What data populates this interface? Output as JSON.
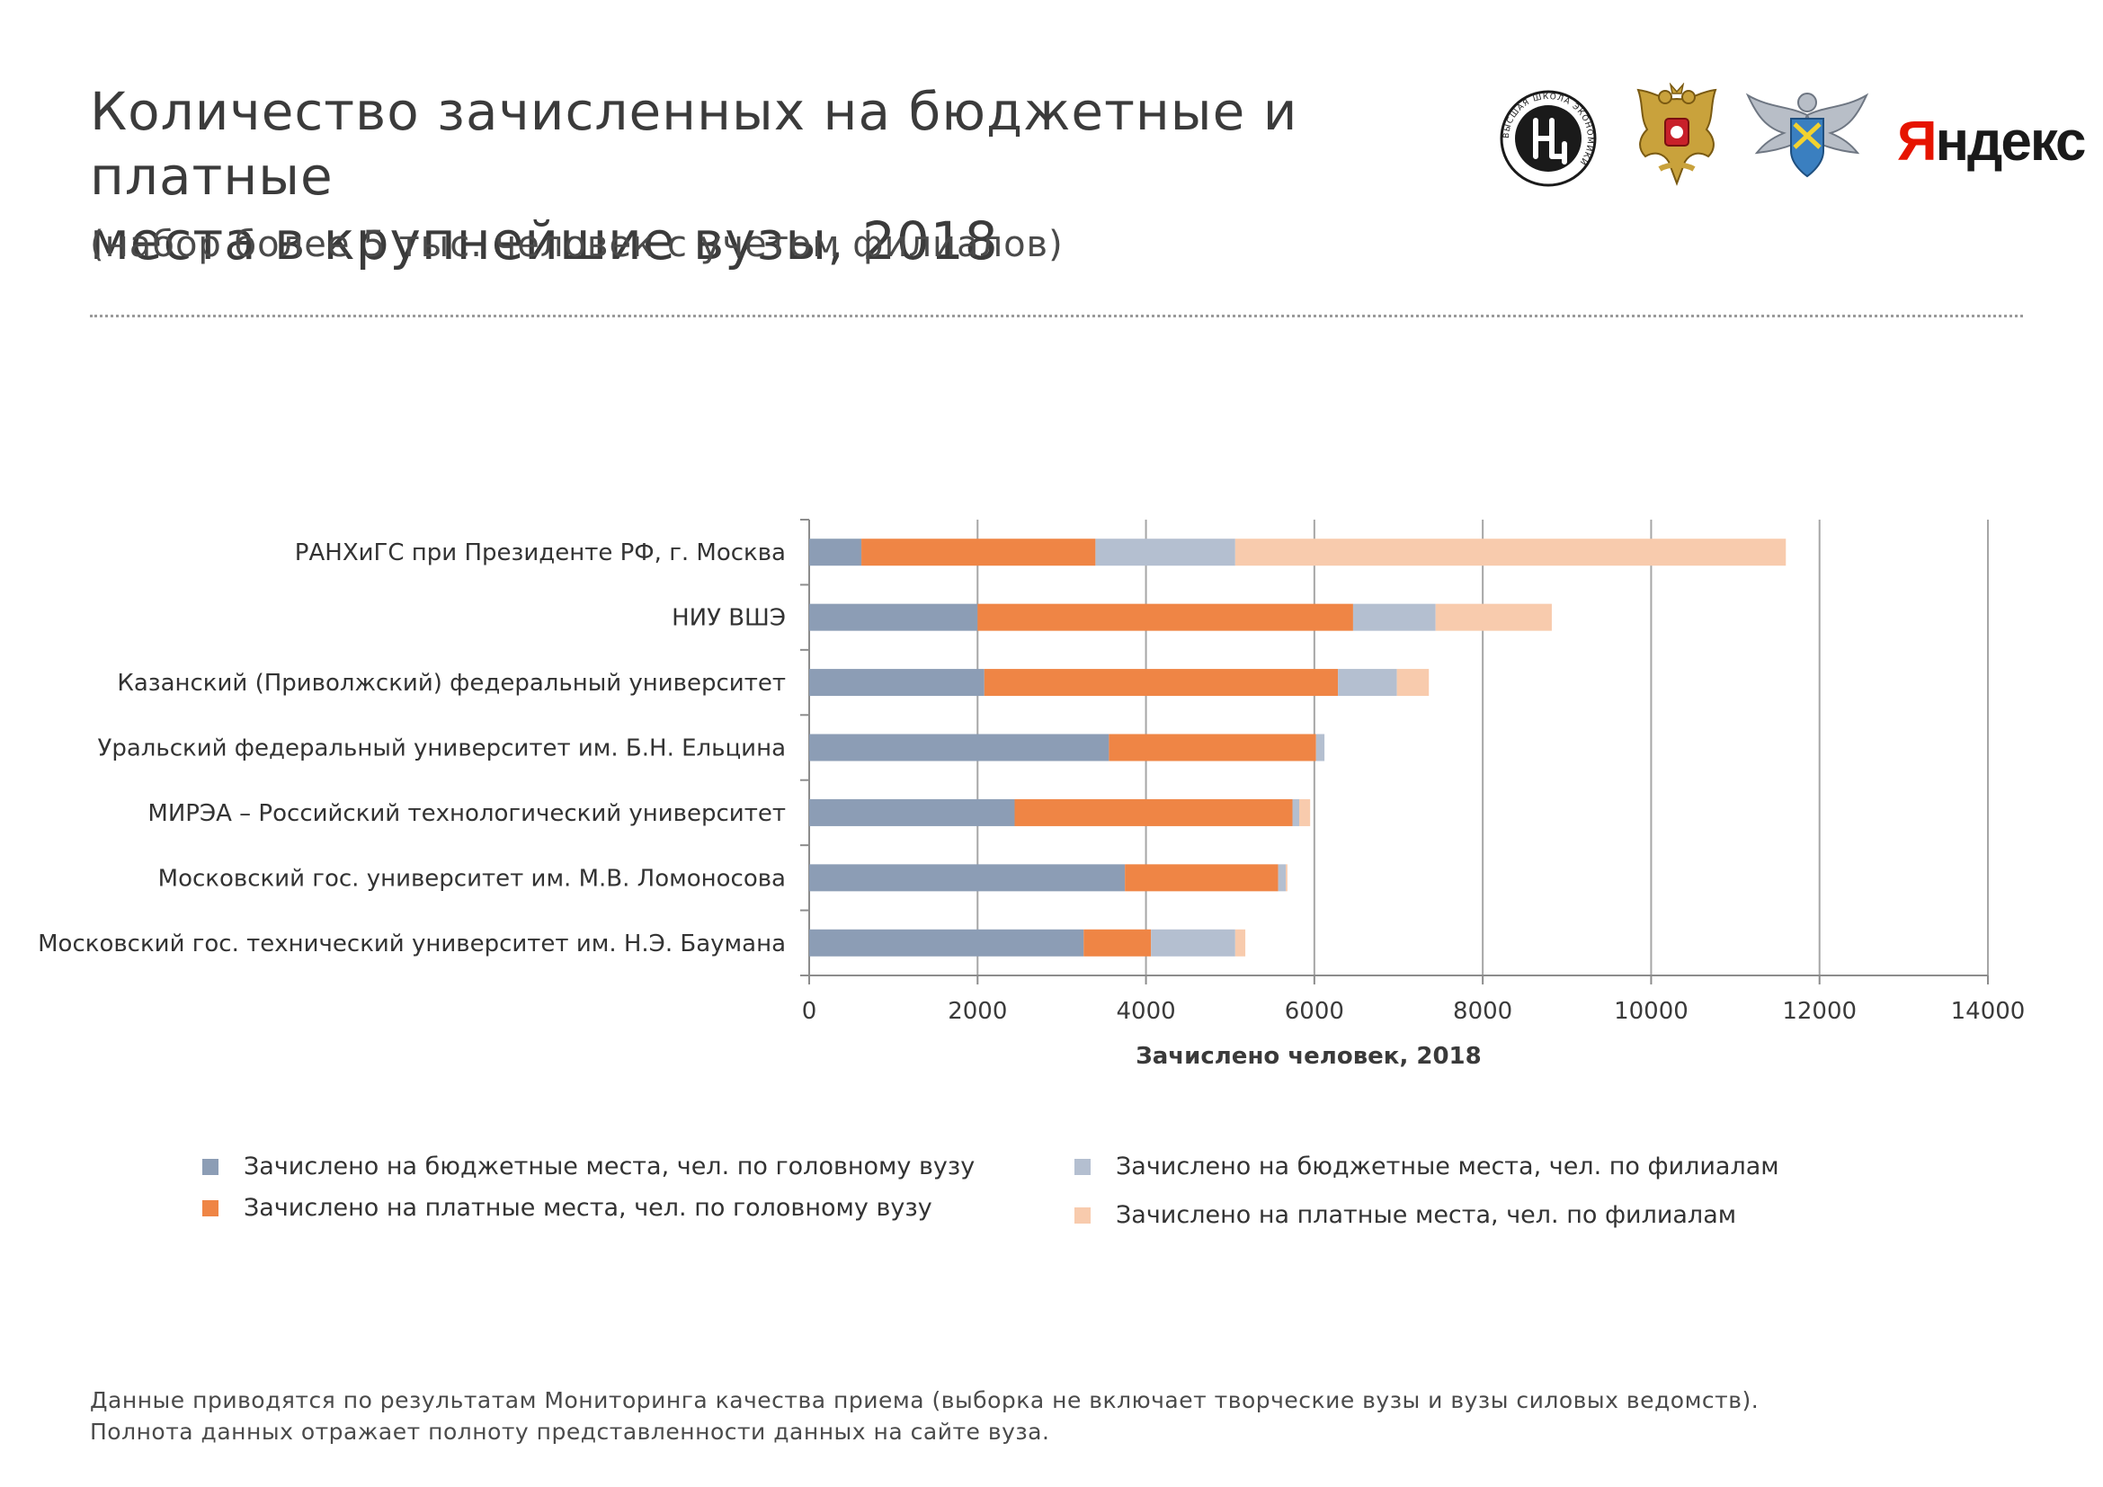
{
  "header": {
    "title_line1": "Количество зачисленных на бюджетные и платные",
    "title_line2": "места в крупнейшие вузы, 2018",
    "subtitle": "(набор более 5 тыс. человек с учетом филиалов)"
  },
  "logos": {
    "hse": "ВЫСШАЯ ШКОЛА ЭКОНОМИКИ",
    "yandex_first": "Я",
    "yandex_rest": "ндекс",
    "icons": [
      "hse-logo-icon",
      "russian-eagle-emblem-icon",
      "winged-shield-emblem-icon",
      "yandex-logo"
    ]
  },
  "chart_data": {
    "type": "bar",
    "orientation": "horizontal",
    "stacked": true,
    "categories": [
      "РАНХиГС при Президенте РФ, г. Москва",
      "НИУ ВШЭ",
      "Казанский (Приволжский) федеральный университет",
      "Уральский федеральный университет им. Б.Н. Ельцина",
      "МИРЭА  – Российский технологический университет",
      "Московский гос. университет им. М.В. Ломоносова",
      "Московский гос. технический университет им. Н.Э. Баумана"
    ],
    "series": [
      {
        "name": "Зачислено на бюджетные места, чел. по головному вузу",
        "color": "#8c9db5",
        "values": [
          620,
          2000,
          2080,
          3560,
          2440,
          3750,
          3260
        ]
      },
      {
        "name": "Зачислено на платные места, чел. по головному вузу",
        "color": "#ef8545",
        "values": [
          2780,
          4460,
          4200,
          2460,
          3300,
          1820,
          800
        ]
      },
      {
        "name": "Зачислено на бюджетные места, чел. по филиалам",
        "color": "#b4bfd0",
        "values": [
          1660,
          980,
          700,
          100,
          80,
          90,
          1000
        ]
      },
      {
        "name": "Зачислено на платные места, чел. по филиалам",
        "color": "#f8cbad",
        "values": [
          6540,
          1380,
          380,
          0,
          130,
          20,
          120
        ]
      }
    ],
    "xlabel": "Зачислено человек, 2018",
    "xlim": [
      0,
      14000
    ],
    "xticks": [
      "0",
      "2000",
      "4000",
      "6000",
      "8000",
      "10000",
      "12000",
      "14000"
    ],
    "grid": true,
    "legend_position": "bottom"
  },
  "footnote": {
    "line1": "Данные приводятся по результатам Мониторинга качества приема (выборка не включает творческие вузы и вузы силовых ведомств).",
    "line2": "Полнота данных отражает полноту представленности данных на сайте вуза."
  }
}
